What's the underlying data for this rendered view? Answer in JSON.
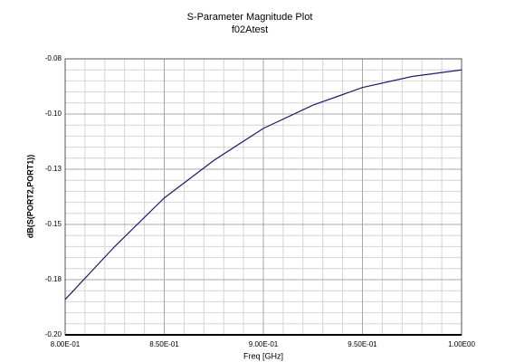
{
  "chart_data": {
    "type": "line",
    "title": "S-Parameter Magnitude Plot",
    "subtitle": "f02Atest",
    "x_label": "Freq [GHz]",
    "y_label": "dB(S(PORT2,PORT1))",
    "x": [
      0.8,
      0.825,
      0.85,
      0.875,
      0.9,
      0.925,
      0.95,
      0.975,
      1.0
    ],
    "series": [
      {
        "color": "#1c1c6c",
        "values": [
          -0.184,
          -0.16,
          -0.138,
          -0.121,
          -0.1065,
          -0.096,
          -0.088,
          -0.083,
          -0.08
        ]
      }
    ],
    "xlim": [
      0.8,
      1.0
    ],
    "xticks": [
      {
        "value": 0.8,
        "label": "8.00E-01"
      },
      {
        "value": 0.85,
        "label": "8.50E-01"
      },
      {
        "value": 0.9,
        "label": "9.00E-01"
      },
      {
        "value": 0.95,
        "label": "9.50E-01"
      },
      {
        "value": 1.0,
        "label": "1.00E00"
      }
    ],
    "ylim": [
      -0.2,
      -0.075
    ],
    "yticks": [
      {
        "value": -0.2,
        "label": "-0.20"
      },
      {
        "value": -0.175,
        "label": "-0.18"
      },
      {
        "value": -0.15,
        "label": "-0.15"
      },
      {
        "value": -0.125,
        "label": "-0.13"
      },
      {
        "value": -0.1,
        "label": "-0.10"
      },
      {
        "value": -0.075,
        "label": "-0.08"
      }
    ],
    "grid": true
  }
}
